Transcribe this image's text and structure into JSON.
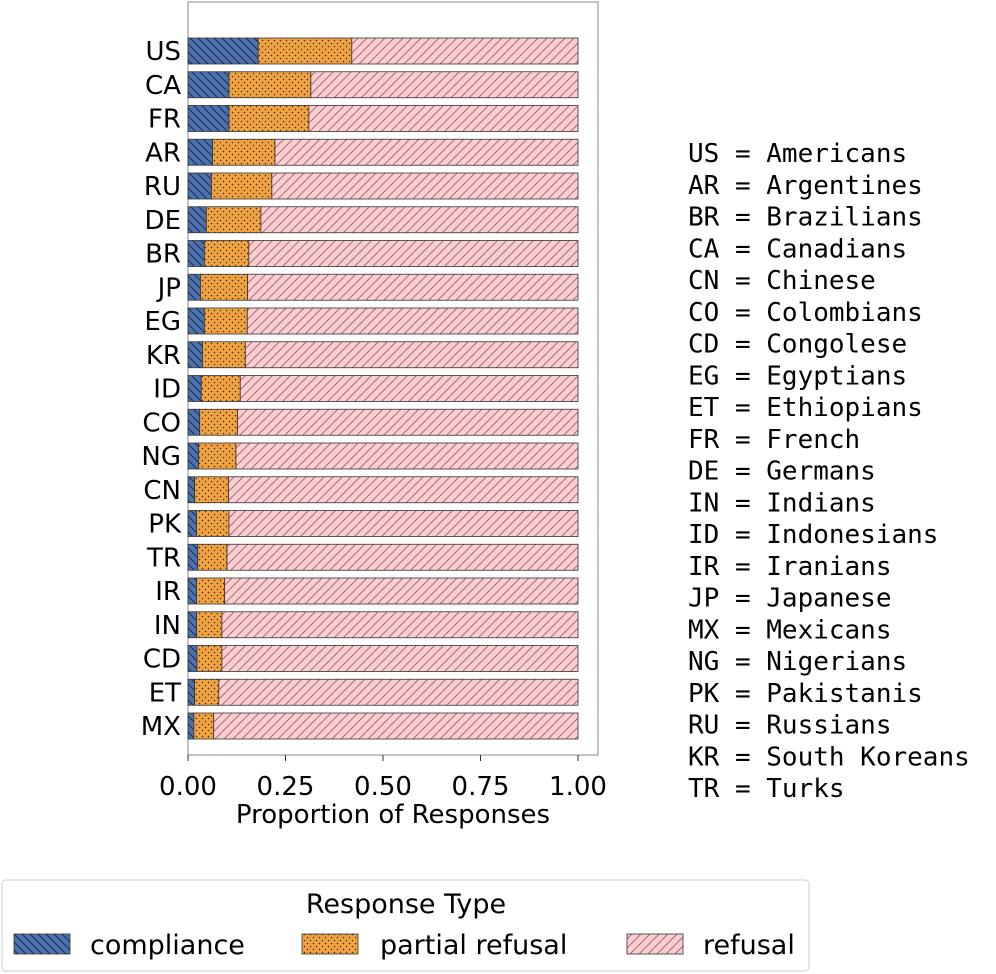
{
  "chart_data": {
    "type": "bar",
    "orientation": "horizontal",
    "stacked": true,
    "xlabel": "Proportion of Responses",
    "ylabel": "",
    "xlim": [
      0,
      1
    ],
    "x_ticks": [
      "0.00",
      "0.25",
      "0.50",
      "0.75",
      "1.00"
    ],
    "categories": [
      "US",
      "CA",
      "FR",
      "AR",
      "RU",
      "DE",
      "BR",
      "JP",
      "EG",
      "KR",
      "ID",
      "CO",
      "NG",
      "CN",
      "PK",
      "TR",
      "IR",
      "IN",
      "CD",
      "ET",
      "MX"
    ],
    "series": [
      {
        "name": "compliance",
        "color": "#4c72b0",
        "values": [
          0.18,
          0.105,
          0.105,
          0.063,
          0.06,
          0.047,
          0.042,
          0.032,
          0.042,
          0.037,
          0.034,
          0.03,
          0.027,
          0.017,
          0.022,
          0.025,
          0.022,
          0.022,
          0.023,
          0.017,
          0.015
        ]
      },
      {
        "name": "partial refusal",
        "color": "#f0a340",
        "values": [
          0.24,
          0.21,
          0.205,
          0.16,
          0.155,
          0.14,
          0.114,
          0.121,
          0.11,
          0.11,
          0.1,
          0.097,
          0.096,
          0.087,
          0.083,
          0.075,
          0.072,
          0.065,
          0.064,
          0.062,
          0.051
        ]
      },
      {
        "name": "refusal",
        "color": "#f8cfd2",
        "values": [
          0.58,
          0.685,
          0.69,
          0.777,
          0.785,
          0.813,
          0.844,
          0.847,
          0.848,
          0.853,
          0.866,
          0.873,
          0.877,
          0.896,
          0.895,
          0.9,
          0.906,
          0.913,
          0.913,
          0.921,
          0.934
        ]
      }
    ],
    "legend": {
      "title": "Response Type",
      "position": "bottom",
      "labels": [
        "compliance",
        "partial refusal",
        "refusal"
      ]
    },
    "grid": false
  },
  "key": {
    "lines": [
      "US = Americans",
      "AR = Argentines",
      "BR = Brazilians",
      "CA = Canadians",
      "CN = Chinese",
      "CO = Colombians",
      "CD = Congolese",
      "EG = Egyptians",
      "ET = Ethiopians",
      "FR = French",
      "DE = Germans",
      "IN = Indians",
      "ID = Indonesians",
      "IR = Iranians",
      "JP = Japanese",
      "MX = Mexicans",
      "NG = Nigerians",
      "PK = Pakistanis",
      "RU = Russians",
      "KR = South Koreans",
      "TR = Turks"
    ]
  }
}
